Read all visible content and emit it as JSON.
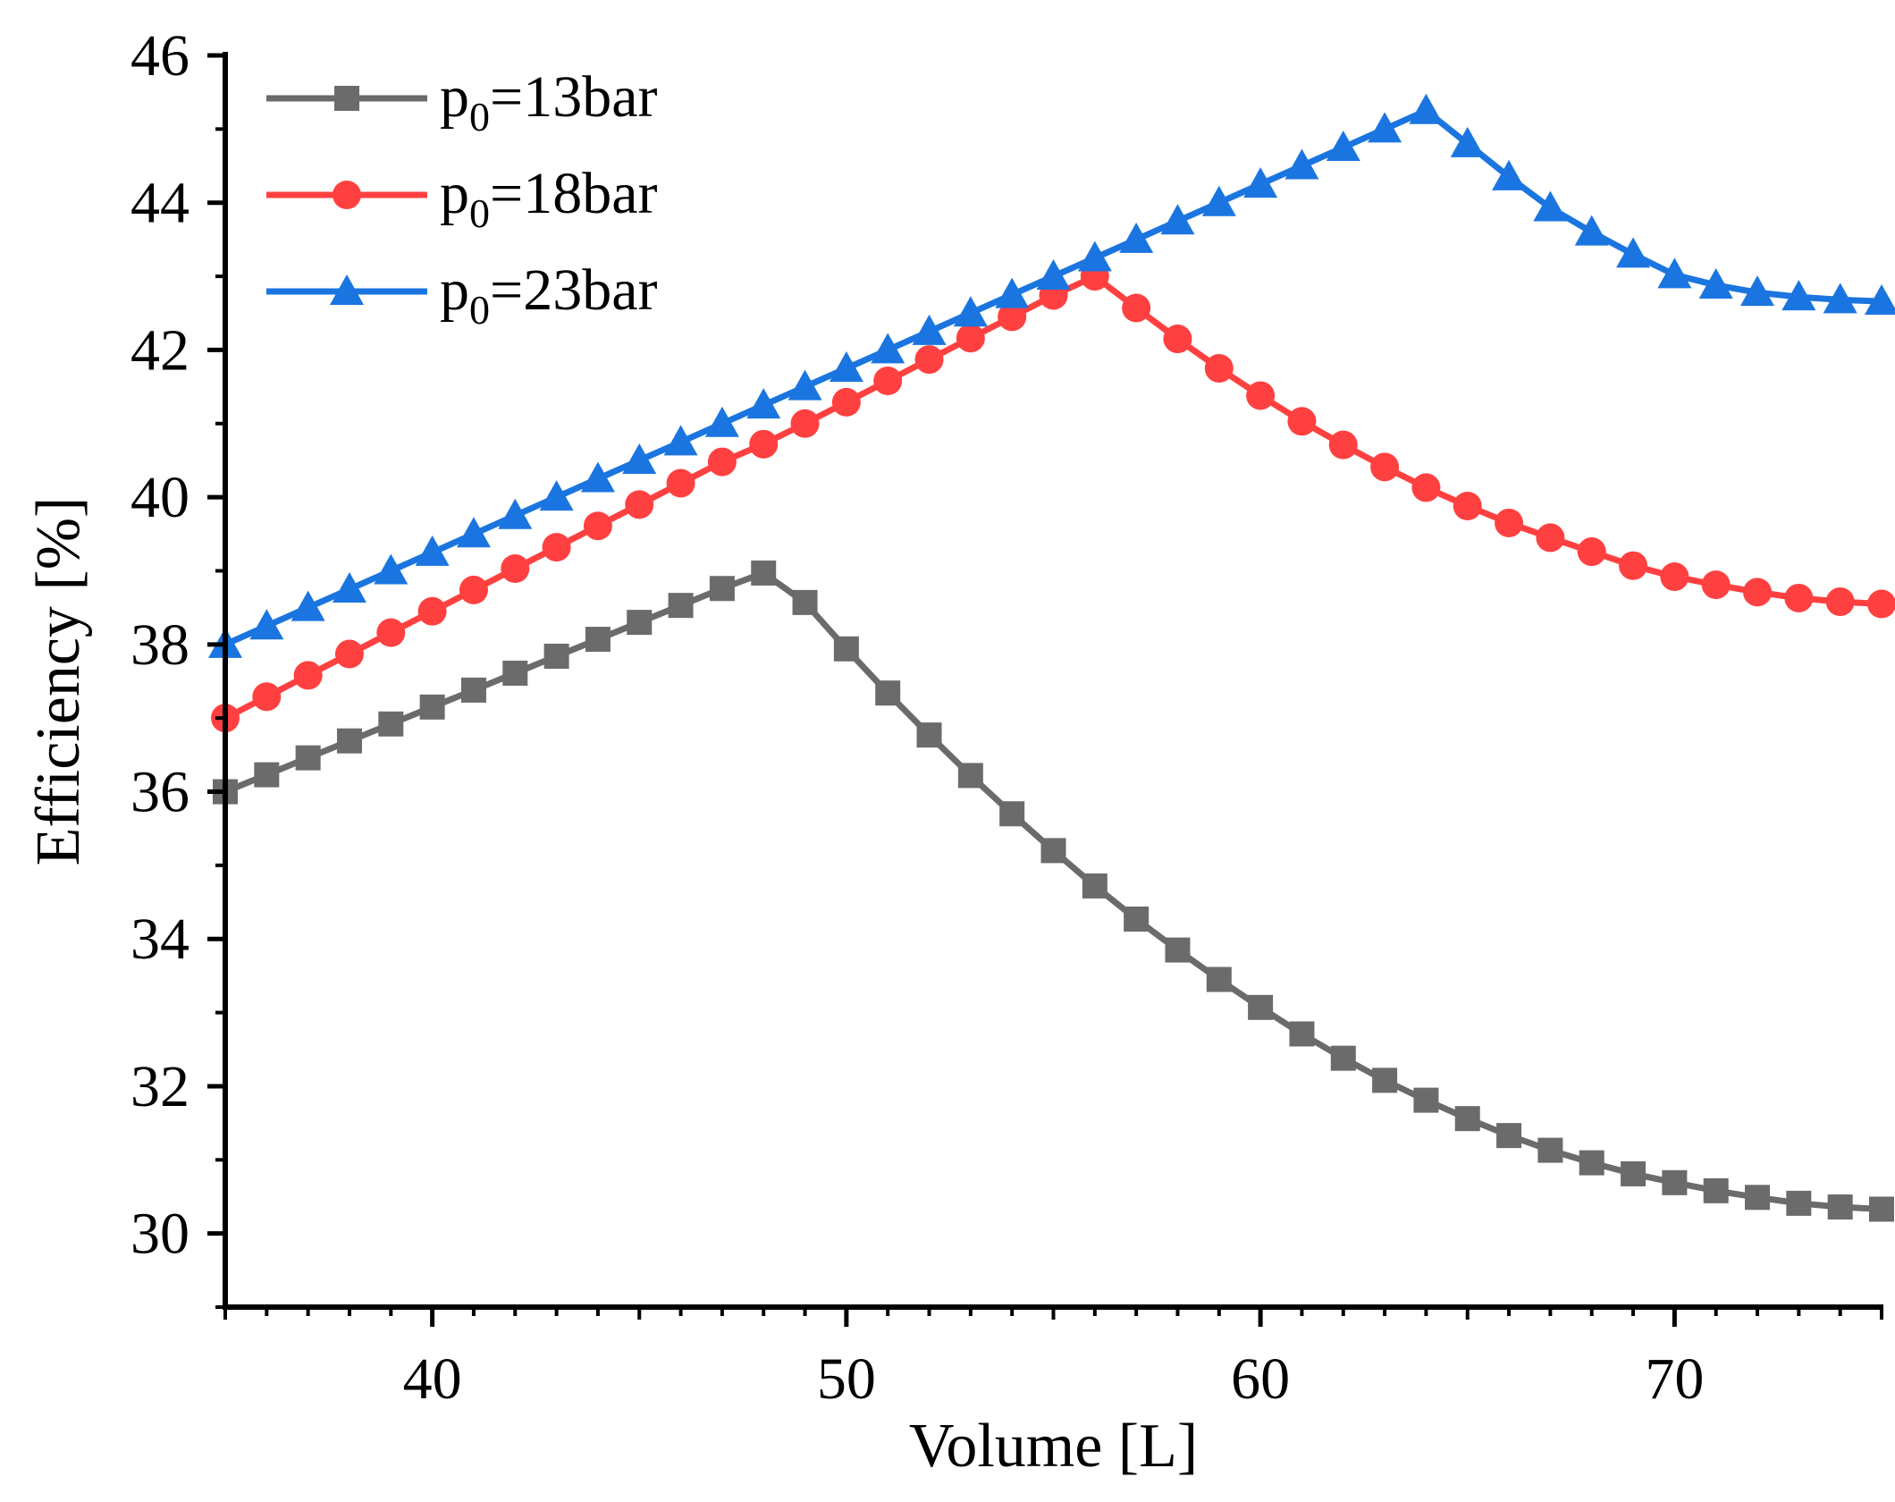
{
  "chart_data": {
    "type": "line",
    "title": "",
    "xlabel": "Volume [L]",
    "ylabel": "Efficiency [%]",
    "xlim": [
      35,
      75
    ],
    "ylim": [
      29,
      46
    ],
    "xticks": [
      40,
      50,
      60,
      70
    ],
    "yticks": [
      30,
      32,
      34,
      36,
      38,
      40,
      42,
      44,
      46
    ],
    "grid": false,
    "legend_position": "top-left",
    "x": [
      35,
      36,
      37,
      38,
      39,
      40,
      41,
      42,
      43,
      44,
      45,
      46,
      47,
      48,
      49,
      50,
      51,
      52,
      53,
      54,
      55,
      56,
      57,
      58,
      59,
      60,
      61,
      62,
      63,
      64,
      65,
      66,
      67,
      68,
      69,
      70,
      71,
      72,
      73,
      74,
      75
    ],
    "series": [
      {
        "name_main": "p",
        "name_sub": "0",
        "name_rest": "=13bar",
        "color": "#6b6b6b",
        "marker": "square",
        "values": [
          36.0,
          36.23,
          36.46,
          36.69,
          36.92,
          37.15,
          37.38,
          37.61,
          37.84,
          38.07,
          38.3,
          38.53,
          38.76,
          38.97,
          38.57,
          37.94,
          37.34,
          36.77,
          36.22,
          35.7,
          35.2,
          34.72,
          34.27,
          33.85,
          33.45,
          33.07,
          32.71,
          32.38,
          32.08,
          31.81,
          31.56,
          31.33,
          31.13,
          30.96,
          30.81,
          30.69,
          30.58,
          30.49,
          30.41,
          30.36,
          30.33
        ]
      },
      {
        "name_main": "p",
        "name_sub": "0",
        "name_rest": "=18bar",
        "color": "#ff4040",
        "marker": "circle",
        "values": [
          37.0,
          37.29,
          37.58,
          37.87,
          38.16,
          38.45,
          38.74,
          39.03,
          39.32,
          39.61,
          39.9,
          40.19,
          40.48,
          40.72,
          41.0,
          41.29,
          41.58,
          41.87,
          42.16,
          42.45,
          42.74,
          43.0,
          42.57,
          42.15,
          41.75,
          41.38,
          41.03,
          40.71,
          40.41,
          40.13,
          39.88,
          39.65,
          39.45,
          39.26,
          39.07,
          38.92,
          38.81,
          38.71,
          38.63,
          38.58,
          38.55
        ]
      },
      {
        "name_main": "p",
        "name_sub": "0",
        "name_rest": "=23bar",
        "color": "#1a75e0",
        "marker": "triangle",
        "values": [
          38.0,
          38.25,
          38.5,
          38.75,
          39.0,
          39.25,
          39.5,
          39.75,
          40.0,
          40.25,
          40.5,
          40.75,
          41.0,
          41.25,
          41.5,
          41.75,
          42.0,
          42.25,
          42.5,
          42.75,
          43.0,
          43.25,
          43.5,
          43.75,
          44.0,
          44.25,
          44.5,
          44.75,
          45.0,
          45.25,
          44.8,
          44.35,
          43.93,
          43.6,
          43.3,
          43.02,
          42.88,
          42.78,
          42.72,
          42.68,
          42.66
        ]
      }
    ]
  }
}
